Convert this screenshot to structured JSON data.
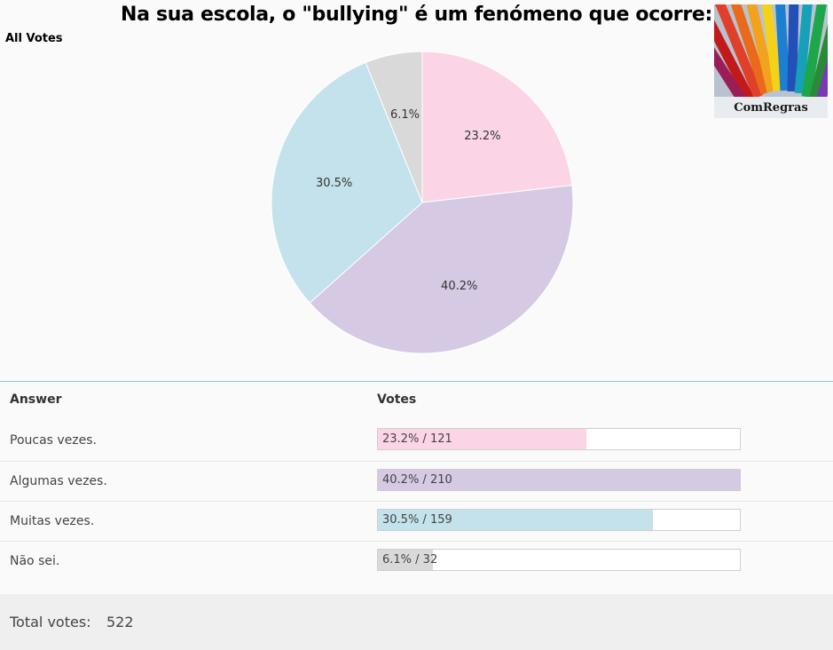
{
  "title": "Na sua escola, o \"bullying\" é um fenómeno que ocorre:",
  "section_label": "All Votes",
  "logo": {
    "text": "ComRegras"
  },
  "table": {
    "answer_header": "Answer",
    "votes_header": "Votes"
  },
  "total": {
    "label": "Total votes:",
    "value": "522"
  },
  "chart_data": {
    "type": "pie",
    "total_votes": 522,
    "slices": [
      {
        "label": "Poucas vezes.",
        "votes": 121,
        "percent": 23.2,
        "percent_label": "23.2%",
        "bar_text": "23.2% / 121",
        "color": "#fbd5e6"
      },
      {
        "label": "Algumas vezes.",
        "votes": 210,
        "percent": 40.2,
        "percent_label": "40.2%",
        "bar_text": "40.2% / 210",
        "color": "#d5c9e4"
      },
      {
        "label": "Muitas vezes.",
        "votes": 159,
        "percent": 30.5,
        "percent_label": "30.5%",
        "bar_text": "30.5% / 159",
        "color": "#c3e2eb"
      },
      {
        "label": "Não sei.",
        "votes": 32,
        "percent": 6.1,
        "percent_label": "6.1%",
        "bar_text": "6.1% / 32",
        "color": "#d9d9d9"
      }
    ],
    "bar_max_percent": 40.2
  }
}
